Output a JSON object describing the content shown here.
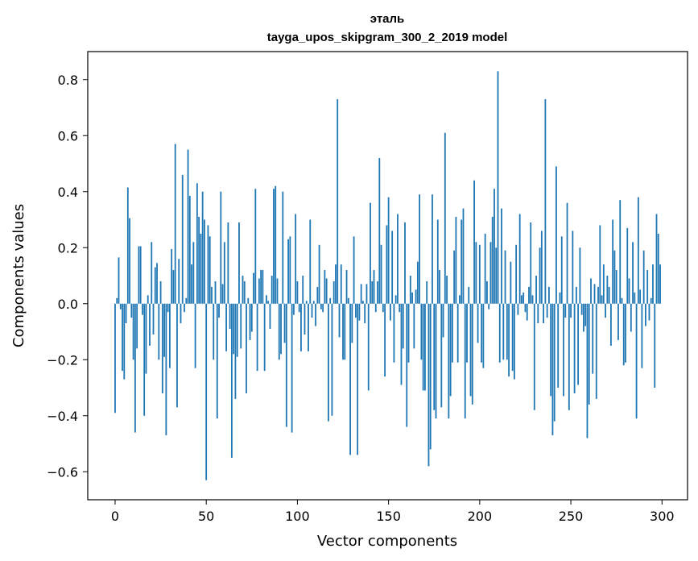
{
  "chart_data": {
    "type": "bar",
    "title": "эталь",
    "subtitle": "tayga_upos_skipgram_300_2_2019 model",
    "xlabel": "Vector components",
    "ylabel": "Components values",
    "xlim": [
      -15,
      314
    ],
    "ylim": [
      -0.7,
      0.9
    ],
    "x_ticks": [
      0,
      50,
      100,
      150,
      200,
      250,
      300
    ],
    "x_tick_labels": [
      "0",
      "50",
      "100",
      "150",
      "200",
      "250",
      "300"
    ],
    "y_ticks": [
      -0.6,
      -0.4,
      -0.2,
      0.0,
      0.2,
      0.4,
      0.6,
      0.8
    ],
    "y_tick_labels": [
      "−0.6",
      "−0.4",
      "−0.2",
      "0.0",
      "0.2",
      "0.4",
      "0.6",
      "0.8"
    ],
    "bar_color": "#1f77b4",
    "grid": false,
    "values": [
      -0.39,
      0.02,
      0.165,
      -0.02,
      -0.24,
      -0.27,
      -0.07,
      0.415,
      0.305,
      -0.05,
      -0.2,
      -0.46,
      -0.16,
      0.205,
      0.205,
      -0.04,
      -0.4,
      -0.25,
      0.03,
      -0.15,
      0.22,
      -0.11,
      0.13,
      0.145,
      -0.2,
      0.08,
      -0.32,
      -0.19,
      -0.47,
      -0.03,
      -0.23,
      0.195,
      0.12,
      0.57,
      -0.37,
      0.16,
      -0.07,
      0.46,
      -0.03,
      0.02,
      0.55,
      0.385,
      0.14,
      0.22,
      -0.23,
      0.43,
      0.31,
      0.25,
      0.4,
      0.3,
      -0.63,
      0.28,
      0.24,
      0.06,
      -0.2,
      0.08,
      -0.41,
      -0.05,
      0.4,
      0.07,
      0.22,
      -0.17,
      0.29,
      -0.09,
      -0.55,
      -0.18,
      -0.34,
      -0.19,
      0.29,
      -0.16,
      0.1,
      0.08,
      -0.32,
      0.02,
      -0.13,
      -0.1,
      0.11,
      0.41,
      -0.24,
      0.09,
      0.12,
      0.12,
      -0.24,
      0.03,
      0.01,
      -0.09,
      0.1,
      0.41,
      0.42,
      0.09,
      -0.2,
      -0.18,
      0.4,
      -0.14,
      -0.44,
      0.23,
      0.24,
      -0.46,
      -0.04,
      0.32,
      0.08,
      -0.03,
      -0.17,
      0.1,
      -0.11,
      0.01,
      -0.17,
      0.3,
      -0.05,
      0.01,
      -0.08,
      0.06,
      0.21,
      -0.02,
      -0.03,
      0.12,
      0.09,
      -0.42,
      0.02,
      -0.4,
      0.08,
      0.14,
      0.73,
      -0.12,
      0.14,
      -0.2,
      -0.2,
      0.12,
      0.02,
      -0.54,
      -0.14,
      0.24,
      -0.05,
      -0.54,
      -0.06,
      0.07,
      0.01,
      -0.07,
      0.07,
      -0.31,
      0.36,
      0.08,
      0.12,
      -0.03,
      0.08,
      0.52,
      0.21,
      -0.03,
      -0.26,
      0.28,
      0.38,
      -0.06,
      0.26,
      -0.21,
      0.03,
      0.32,
      -0.03,
      -0.29,
      -0.16,
      0.29,
      -0.44,
      -0.21,
      0.1,
      0.04,
      -0.16,
      0.05,
      0.15,
      0.39,
      -0.2,
      -0.31,
      -0.31,
      0.08,
      -0.58,
      -0.52,
      0.39,
      -0.38,
      -0.41,
      0.3,
      0.12,
      -0.37,
      -0.12,
      0.61,
      0.1,
      -0.41,
      -0.33,
      -0.21,
      0.19,
      0.31,
      -0.21,
      0.03,
      0.3,
      0.34,
      -0.41,
      -0.21,
      0.06,
      -0.33,
      -0.36,
      0.44,
      0.22,
      -0.14,
      0.21,
      -0.21,
      -0.23,
      0.25,
      0.08,
      -0.02,
      0.22,
      0.31,
      0.41,
      0.2,
      0.83,
      -0.21,
      0.34,
      -0.2,
      0.19,
      -0.2,
      -0.26,
      0.15,
      -0.24,
      -0.27,
      0.21,
      -0.04,
      0.32,
      0.03,
      0.04,
      -0.03,
      -0.06,
      0.06,
      0.29,
      0.03,
      -0.38,
      0.1,
      -0.07,
      0.2,
      0.26,
      -0.07,
      0.73,
      -0.05,
      0.06,
      -0.33,
      -0.47,
      -0.42,
      0.49,
      -0.3,
      0.04,
      0.24,
      -0.33,
      -0.05,
      0.36,
      -0.38,
      -0.05,
      0.26,
      -0.32,
      0.06,
      -0.29,
      0.2,
      -0.04,
      -0.1,
      -0.08,
      -0.48,
      -0.36,
      0.09,
      -0.25,
      0.07,
      -0.34,
      0.06,
      0.28,
      0.03,
      0.14,
      -0.05,
      0.1,
      0.06,
      -0.15,
      0.3,
      0.19,
      0.12,
      -0.13,
      0.37,
      0.02,
      -0.22,
      -0.21,
      0.27,
      0.09,
      -0.1,
      0.22,
      0.04,
      -0.41,
      0.38,
      0.05,
      -0.23,
      0.19,
      -0.08,
      0.12,
      -0.06,
      0.02,
      0.14,
      -0.3,
      0.32,
      0.25,
      0.14
    ]
  }
}
